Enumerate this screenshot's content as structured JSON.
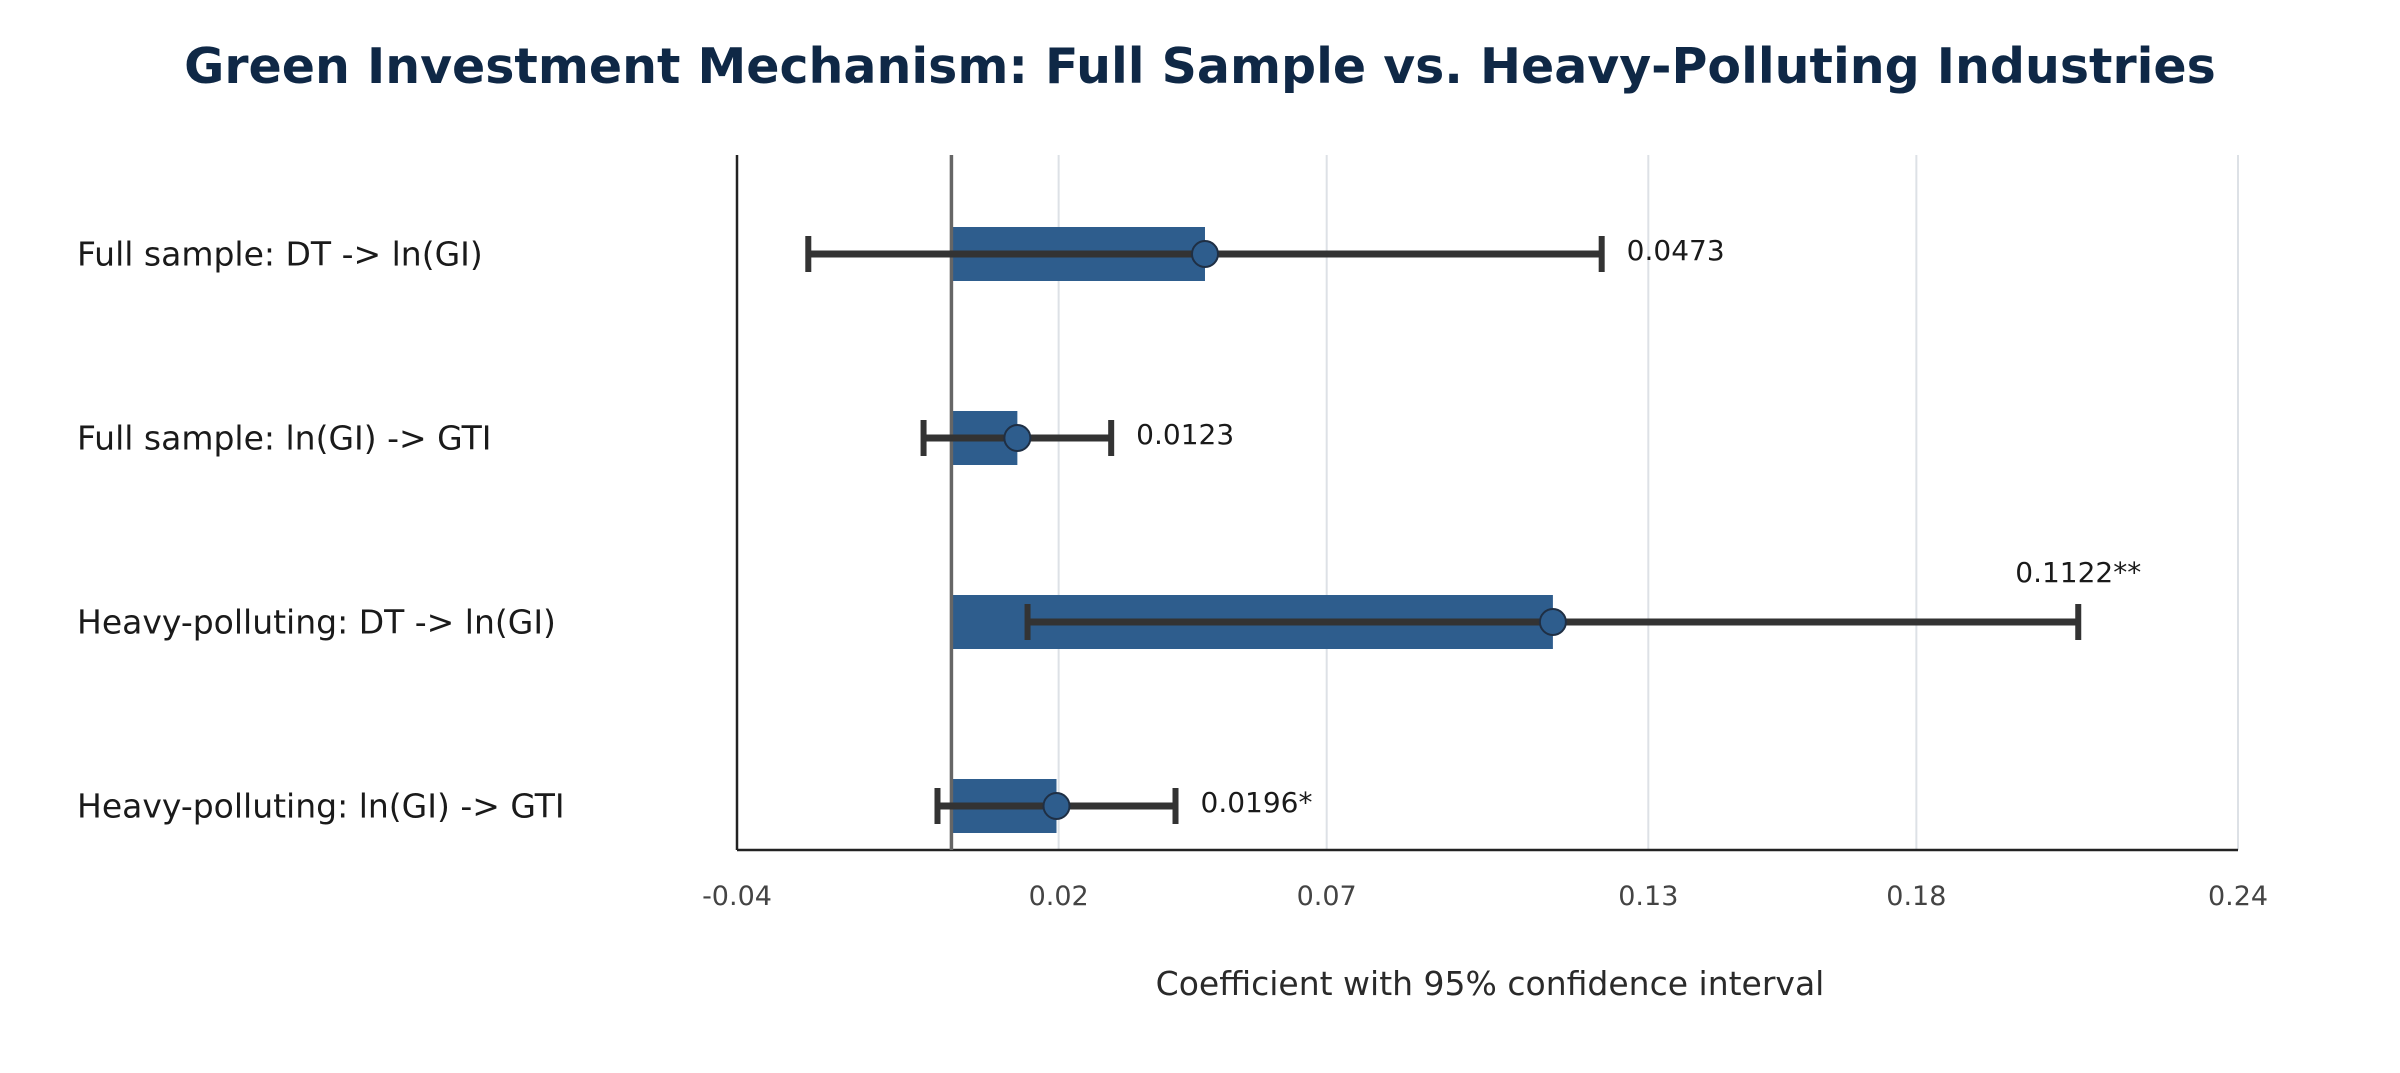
{
  "chart_data": {
    "type": "bar",
    "title": "Green Investment Mechanism: Full Sample vs. Heavy-Polluting Industries",
    "xlabel": "Coefficient with 95% confidence interval",
    "ylabel": "",
    "xlim": [
      -0.04,
      0.24
    ],
    "x_ticks": [
      -0.04,
      0.02,
      0.07,
      0.13,
      0.18,
      0.24
    ],
    "x_tick_labels": [
      "-0.04",
      "0.02",
      "0.07",
      "0.13",
      "0.18",
      "0.24"
    ],
    "reference_line": 0,
    "grid": "vertical",
    "bar_color": "#2e5d8d",
    "point_color": "#2e5d8d",
    "errorbar_color": "#333333",
    "categories": [
      "Full sample: DT -> ln(GI)",
      "Full sample: ln(GI) -> GTI",
      "Heavy-polluting: DT -> ln(GI)",
      "Heavy-polluting: ln(GI) -> GTI"
    ],
    "values": [
      0.0473,
      0.0123,
      0.1122,
      0.0196
    ],
    "ci_lower": [
      -0.0267,
      -0.0052,
      0.0142,
      -0.0026
    ],
    "ci_upper": [
      0.1213,
      0.0298,
      0.2102,
      0.0418
    ],
    "value_labels": [
      "0.0473",
      "0.0123",
      "0.1122**",
      "0.0196*"
    ]
  }
}
